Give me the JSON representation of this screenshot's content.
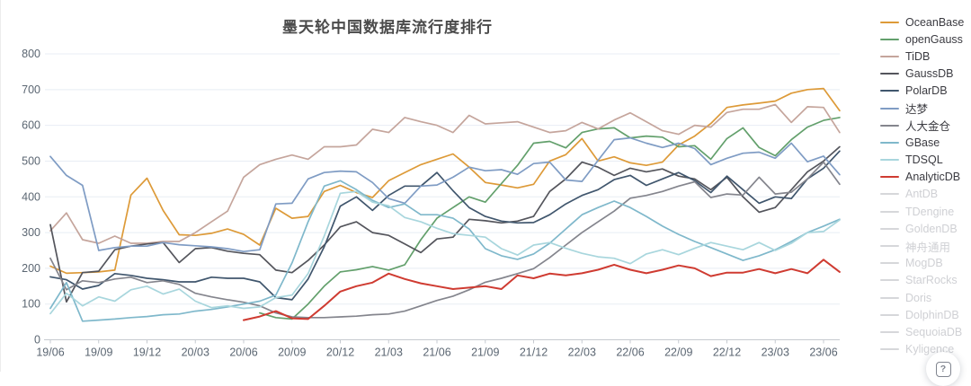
{
  "title": "墨天轮中国数据库流行度排行",
  "help_button": {
    "icon": "?"
  },
  "axes": {
    "y_ticks": [
      0,
      100,
      200,
      300,
      400,
      500,
      600,
      700,
      800
    ],
    "x_ticks": [
      "19/06",
      "19/09",
      "19/12",
      "20/03",
      "20/06",
      "20/09",
      "20/12",
      "21/03",
      "21/06",
      "21/09",
      "21/12",
      "22/03",
      "22/06",
      "22/09",
      "22/12",
      "23/03",
      "23/06"
    ]
  },
  "colors": {
    "grid": "#e8edf4",
    "axis_line": "#c6cad0",
    "tick_text": "#5b6672",
    "title_text": "#4b4b4b",
    "disabled_legend": "#d6d7da"
  },
  "chart_data": {
    "type": "line",
    "title": "墨天轮中国数据库流行度排行",
    "xlabel": "",
    "ylabel": "",
    "ylim": [
      0,
      800
    ],
    "grid": "horizontal",
    "legend_position": "right",
    "x_tick_every": 3,
    "x": [
      "19/06",
      "19/07",
      "19/08",
      "19/09",
      "19/10",
      "19/11",
      "19/12",
      "20/01",
      "20/02",
      "20/03",
      "20/04",
      "20/05",
      "20/06",
      "20/07",
      "20/08",
      "20/09",
      "20/10",
      "20/11",
      "20/12",
      "21/01",
      "21/02",
      "21/03",
      "21/04",
      "21/05",
      "21/06",
      "21/07",
      "21/08",
      "21/09",
      "21/10",
      "21/11",
      "21/12",
      "22/01",
      "22/02",
      "22/03",
      "22/04",
      "22/05",
      "22/06",
      "22/07",
      "22/08",
      "22/09",
      "22/10",
      "22/11",
      "22/12",
      "23/01",
      "23/02",
      "23/03",
      "23/04",
      "23/05",
      "23/06",
      "23/07"
    ],
    "series": [
      {
        "name": "OceanBase",
        "color": "#dd9a38",
        "values": [
          206,
          186,
          188,
          190,
          195,
          405,
          452,
          362,
          294,
          292,
          298,
          310,
          295,
          265,
          368,
          340,
          345,
          415,
          432,
          412,
          398,
          445,
          468,
          490,
          505,
          520,
          483,
          440,
          433,
          425,
          435,
          500,
          518,
          563,
          500,
          512,
          495,
          488,
          497,
          545,
          570,
          605,
          650,
          657,
          662,
          668,
          690,
          700,
          703,
          641
        ]
      },
      {
        "name": "openGauss",
        "color": "#63a06c",
        "values": [
          null,
          null,
          null,
          null,
          null,
          null,
          null,
          null,
          null,
          null,
          null,
          null,
          null,
          75,
          62,
          58,
          100,
          150,
          190,
          196,
          205,
          195,
          210,
          280,
          340,
          370,
          400,
          385,
          437,
          488,
          550,
          555,
          537,
          580,
          590,
          593,
          565,
          570,
          567,
          540,
          543,
          505,
          563,
          593,
          538,
          515,
          560,
          595,
          614,
          622
        ]
      },
      {
        "name": "TiDB",
        "color": "#c5a59c",
        "values": [
          305,
          355,
          280,
          270,
          290,
          270,
          270,
          275,
          275,
          300,
          330,
          360,
          455,
          490,
          505,
          517,
          505,
          540,
          540,
          545,
          589,
          580,
          622,
          610,
          600,
          580,
          628,
          604,
          607,
          610,
          595,
          580,
          585,
          608,
          590,
          615,
          635,
          610,
          585,
          575,
          600,
          595,
          636,
          645,
          645,
          658,
          608,
          652,
          650,
          580
        ]
      },
      {
        "name": "GaussDB",
        "color": "#54555c",
        "values": [
          322,
          106,
          188,
          192,
          252,
          262,
          268,
          272,
          216,
          255,
          258,
          248,
          242,
          238,
          195,
          188,
          222,
          265,
          316,
          330,
          300,
          292,
          268,
          244,
          282,
          287,
          337,
          333,
          327,
          332,
          345,
          415,
          450,
          497,
          483,
          460,
          480,
          470,
          478,
          458,
          450,
          420,
          455,
          400,
          357,
          370,
          420,
          470,
          500,
          540
        ]
      },
      {
        "name": "PolarDB",
        "color": "#40566d",
        "values": [
          176,
          168,
          142,
          152,
          185,
          180,
          172,
          168,
          162,
          162,
          175,
          172,
          172,
          162,
          118,
          112,
          170,
          260,
          374,
          400,
          362,
          404,
          430,
          430,
          468,
          417,
          370,
          345,
          332,
          327,
          328,
          350,
          380,
          404,
          420,
          448,
          460,
          432,
          450,
          468,
          445,
          412,
          458,
          420,
          382,
          400,
          395,
          450,
          480,
          528
        ]
      },
      {
        "name": "达梦",
        "color": "#7f9cc4",
        "values": [
          513,
          460,
          432,
          250,
          258,
          262,
          262,
          272,
          266,
          263,
          260,
          255,
          247,
          252,
          380,
          382,
          450,
          468,
          472,
          470,
          440,
          395,
          382,
          430,
          433,
          455,
          483,
          473,
          476,
          463,
          493,
          497,
          447,
          443,
          502,
          560,
          565,
          550,
          538,
          550,
          535,
          490,
          508,
          522,
          525,
          508,
          550,
          498,
          514,
          462
        ]
      },
      {
        "name": "人大金仓",
        "color": "#84858d",
        "values": [
          228,
          140,
          165,
          160,
          170,
          175,
          160,
          165,
          155,
          130,
          120,
          112,
          105,
          95,
          75,
          64,
          62,
          62,
          64,
          66,
          70,
          72,
          80,
          95,
          110,
          122,
          140,
          161,
          172,
          185,
          199,
          230,
          265,
          300,
          330,
          360,
          396,
          404,
          415,
          430,
          442,
          398,
          408,
          405,
          455,
          408,
          413,
          450,
          497,
          435
        ]
      },
      {
        "name": "GBase",
        "color": "#7fb8cb",
        "values": [
          88,
          160,
          52,
          55,
          58,
          62,
          65,
          70,
          72,
          80,
          85,
          92,
          100,
          108,
          125,
          215,
          330,
          430,
          445,
          420,
          390,
          370,
          380,
          350,
          350,
          340,
          310,
          255,
          235,
          225,
          240,
          270,
          310,
          350,
          370,
          388,
          370,
          345,
          318,
          295,
          275,
          258,
          240,
          222,
          235,
          252,
          275,
          300,
          318,
          337
        ]
      },
      {
        "name": "TDSQL",
        "color": "#a8d6dd",
        "values": [
          73,
          130,
          95,
          120,
          108,
          140,
          150,
          128,
          142,
          108,
          90,
          95,
          88,
          92,
          118,
          125,
          185,
          290,
          410,
          415,
          385,
          375,
          342,
          330,
          312,
          297,
          292,
          287,
          255,
          237,
          265,
          272,
          256,
          242,
          232,
          228,
          213,
          240,
          252,
          238,
          256,
          272,
          262,
          252,
          272,
          250,
          270,
          300,
          303,
          335
        ]
      },
      {
        "name": "AnalyticDB",
        "color": "#cf3b31",
        "values": [
          null,
          null,
          null,
          null,
          null,
          null,
          null,
          null,
          null,
          null,
          null,
          null,
          55,
          65,
          80,
          60,
          58,
          95,
          135,
          150,
          160,
          185,
          170,
          158,
          150,
          142,
          146,
          150,
          142,
          180,
          172,
          185,
          180,
          186,
          196,
          210,
          196,
          186,
          196,
          208,
          200,
          178,
          188,
          188,
          198,
          186,
          198,
          186,
          224,
          190
        ]
      }
    ],
    "legend_disabled": [
      {
        "name": "AntDB"
      },
      {
        "name": "TDengine"
      },
      {
        "name": "GoldenDB"
      },
      {
        "name": "神舟通用"
      },
      {
        "name": "MogDB"
      },
      {
        "name": "StarRocks"
      },
      {
        "name": "Doris"
      },
      {
        "name": "DolphinDB"
      },
      {
        "name": "SequoiaDB"
      },
      {
        "name": "Kyligence"
      }
    ]
  }
}
